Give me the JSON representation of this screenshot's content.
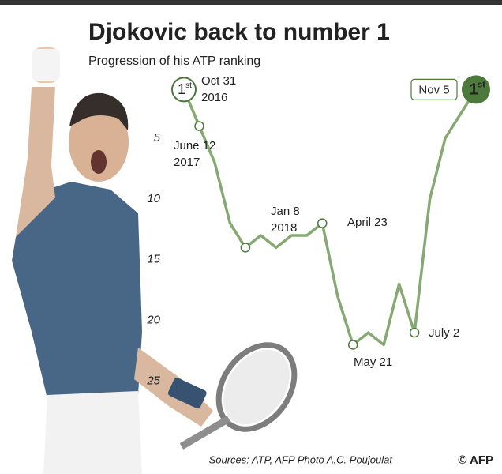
{
  "chart_data": {
    "type": "line",
    "title": "Djokovic back to number 1",
    "subtitle": "Progression of his ATP ranking",
    "source": "Sources: ATP, AFP Photo A.C. Poujoulat",
    "credit": "© AFP",
    "rank_badge": {
      "number": "1",
      "suffix": "st"
    },
    "categories": [
      [
        "Oct 31",
        "2016"
      ],
      [
        "June 12",
        "2017"
      ],
      null,
      null,
      [
        "Jan 8",
        "2018"
      ],
      null,
      null,
      null,
      null,
      [
        "April 23"
      ],
      null,
      [
        "May 21"
      ],
      null,
      null,
      null,
      [
        "July 2"
      ],
      null,
      null,
      null,
      [
        "Nov 5"
      ]
    ],
    "series": [
      {
        "name": "ATP ranking",
        "color": "#86a872",
        "values": [
          1,
          4,
          7,
          12,
          14,
          13,
          14,
          13,
          13,
          12,
          18,
          22,
          21,
          22,
          17,
          21,
          10,
          5,
          3,
          1
        ]
      }
    ],
    "ylim": [
      0,
      26
    ],
    "y_inverted": true,
    "yticks": [
      5,
      10,
      15,
      20,
      25
    ],
    "grid": false
  }
}
